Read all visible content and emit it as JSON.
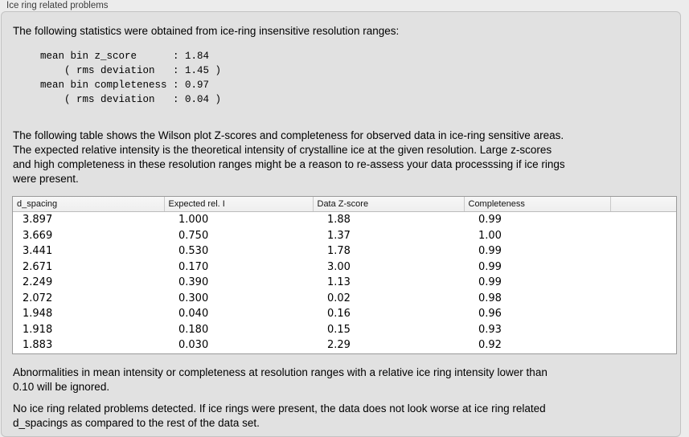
{
  "panel": {
    "title": "Ice ring related problems"
  },
  "sections": {
    "intro": "The following statistics were obtained from ice-ring insensitive resolution ranges:",
    "stats_block": "mean bin z_score      : 1.84\n    ( rms deviation   : 1.45 )\nmean bin completeness : 0.97\n    ( rms deviation   : 0.04 )",
    "stats": {
      "mean_bin_z_score": "1.84",
      "z_score_rms_deviation": "1.45",
      "mean_bin_completeness": "0.97",
      "completeness_rms_deviation": "0.04"
    },
    "table_intro": "The following table shows the Wilson plot Z-scores and completeness for observed data in ice-ring sensitive areas.\nThe expected relative intensity is the theoretical intensity of crystalline ice at the given resolution. Large z-scores\nand high completeness in these resolution ranges might be a reason to re-assess your data processsing if ice rings\nwere present.",
    "note": "Abnormalities in mean intensity or completeness at resolution ranges with a relative ice ring intensity lower than\n0.10 will be ignored.",
    "conclusion": "No ice ring related problems detected. If ice rings were present, the data does not look worse at ice ring related\nd_spacings as compared to the rest of the data set."
  },
  "table": {
    "headers": [
      "d_spacing",
      "Expected rel. I",
      "Data Z-score",
      "Completeness",
      ""
    ],
    "rows": [
      [
        "3.897",
        "1.000",
        "1.88",
        "0.99"
      ],
      [
        "3.669",
        "0.750",
        "1.37",
        "1.00"
      ],
      [
        "3.441",
        "0.530",
        "1.78",
        "0.99"
      ],
      [
        "2.671",
        "0.170",
        "3.00",
        "0.99"
      ],
      [
        "2.249",
        "0.390",
        "1.13",
        "0.99"
      ],
      [
        "2.072",
        "0.300",
        "0.02",
        "0.98"
      ],
      [
        "1.948",
        "0.040",
        "0.16",
        "0.96"
      ],
      [
        "1.918",
        "0.180",
        "0.15",
        "0.93"
      ],
      [
        "1.883",
        "0.030",
        "2.29",
        "0.92"
      ]
    ]
  }
}
